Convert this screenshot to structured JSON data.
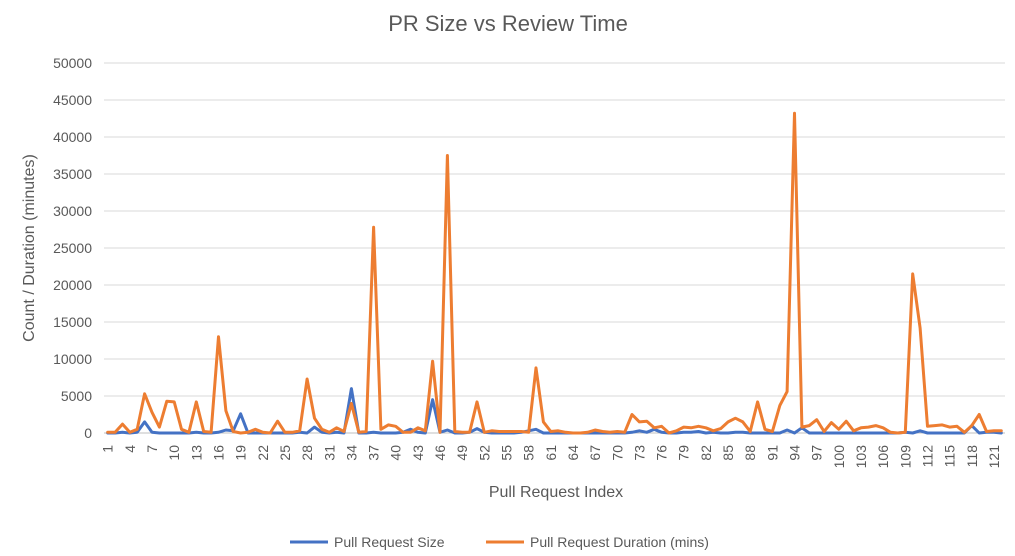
{
  "chart_data": {
    "type": "line",
    "title": "PR Size vs Review Time",
    "xlabel": "Pull Request Index",
    "ylabel": "Count / Duration (minutes)",
    "ylim": [
      0,
      50000
    ],
    "yticks": [
      0,
      5000,
      10000,
      15000,
      20000,
      25000,
      30000,
      35000,
      40000,
      45000,
      50000
    ],
    "grid": "horizontal",
    "legend_position": "bottom",
    "x_count": 122,
    "x_tick_labels": [
      1,
      4,
      7,
      10,
      13,
      16,
      19,
      22,
      25,
      28,
      31,
      34,
      37,
      40,
      43,
      46,
      49,
      52,
      55,
      58,
      61,
      64,
      67,
      70,
      73,
      76,
      79,
      82,
      85,
      88,
      91,
      94,
      97,
      100,
      103,
      106,
      109,
      112,
      115,
      118,
      121
    ],
    "series": [
      {
        "name": "Pull Request Size",
        "color": "#4472C4",
        "values": [
          0,
          0,
          100,
          0,
          100,
          1500,
          100,
          0,
          0,
          0,
          0,
          0,
          100,
          0,
          0,
          100,
          400,
          300,
          2600,
          0,
          0,
          0,
          0,
          0,
          0,
          0,
          100,
          0,
          800,
          100,
          0,
          100,
          0,
          6000,
          0,
          0,
          100,
          0,
          0,
          0,
          100,
          500,
          100,
          0,
          4500,
          100,
          400,
          0,
          0,
          100,
          600,
          100,
          0,
          0,
          0,
          0,
          100,
          300,
          500,
          0,
          0,
          0,
          0,
          0,
          0,
          0,
          0,
          0,
          0,
          0,
          0,
          100,
          300,
          100,
          500,
          100,
          0,
          0,
          100,
          100,
          200,
          0,
          100,
          0,
          0,
          100,
          100,
          0,
          0,
          0,
          0,
          0,
          400,
          0,
          700,
          0,
          0,
          0,
          0,
          0,
          0,
          0,
          0,
          0,
          0,
          0,
          0,
          0,
          100,
          0,
          300,
          0,
          0,
          0,
          0,
          0,
          0,
          1000,
          0,
          100,
          100,
          0
        ]
      },
      {
        "name": "Pull Request Duration (mins)",
        "color": "#ED7D31",
        "values": [
          100,
          100,
          1200,
          100,
          500,
          5300,
          2800,
          800,
          4300,
          4200,
          500,
          100,
          4200,
          200,
          100,
          13000,
          3000,
          200,
          0,
          100,
          500,
          100,
          0,
          1600,
          100,
          100,
          300,
          7300,
          2000,
          500,
          100,
          700,
          200,
          4000,
          100,
          200,
          27800,
          500,
          1100,
          900,
          100,
          100,
          700,
          300,
          9700,
          100,
          37500,
          200,
          100,
          100,
          4200,
          100,
          300,
          200,
          200,
          200,
          200,
          100,
          8800,
          1500,
          200,
          300,
          100,
          0,
          0,
          100,
          400,
          200,
          100,
          200,
          100,
          2500,
          1500,
          1600,
          700,
          900,
          0,
          300,
          800,
          700,
          900,
          700,
          300,
          600,
          1500,
          2000,
          1500,
          200,
          4200,
          500,
          200,
          3700,
          5600,
          43200,
          800,
          1000,
          1800,
          200,
          1400,
          500,
          1600,
          300,
          700,
          800,
          1000,
          700,
          100,
          0,
          100,
          21500,
          14200,
          900,
          1000,
          1100,
          800,
          900,
          100,
          1000,
          2500,
          200,
          300,
          300
        ]
      }
    ]
  }
}
